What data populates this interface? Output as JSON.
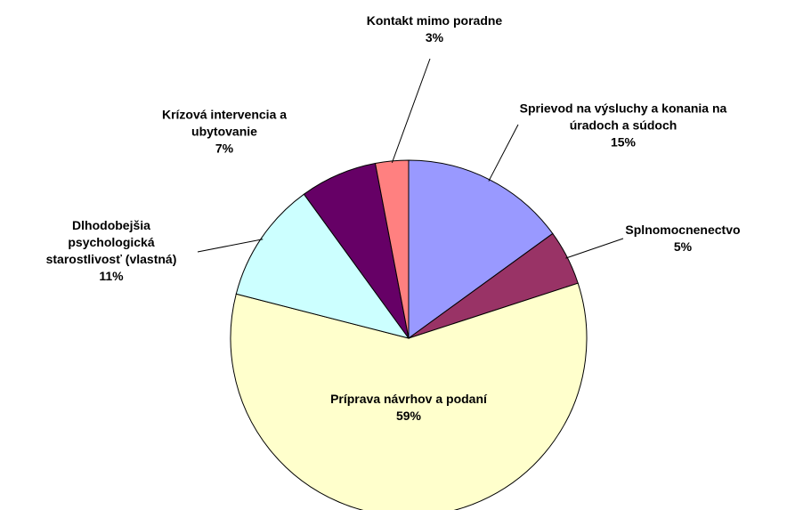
{
  "chart_data": {
    "type": "pie",
    "categories": [
      "Sprievod na výsluchy a konania na úradoch a súdoch",
      "Splnomocnenectvo",
      "Príprava návrhov a podaní",
      "Dlhodobejšia psychologická starostlivosť (vlastná)",
      "Krízová intervencia a ubytovanie",
      "Kontakt mimo poradne"
    ],
    "values": [
      15,
      5,
      59,
      11,
      7,
      3
    ],
    "value_labels": [
      "15%",
      "5%",
      "59%",
      "11%",
      "7%",
      "3%"
    ],
    "colors": [
      "#9999ff",
      "#993366",
      "#ffffcc",
      "#ccffff",
      "#660066",
      "#ff8080"
    ]
  }
}
